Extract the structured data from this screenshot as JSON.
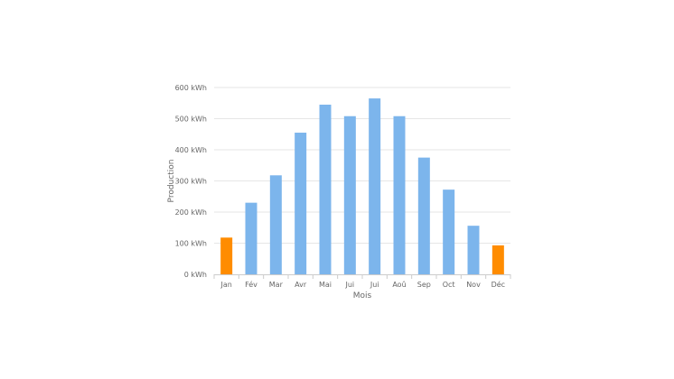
{
  "chart_data": {
    "type": "bar",
    "categories": [
      "Jan",
      "Fév",
      "Mar",
      "Avr",
      "Mai",
      "Jui",
      "Jui",
      "Aoû",
      "Sep",
      "Oct",
      "Nov",
      "Déc"
    ],
    "values": [
      118,
      230,
      318,
      455,
      545,
      508,
      565,
      508,
      375,
      272,
      156,
      93
    ],
    "xlabel": "Mois",
    "ylabel": "Production",
    "yticks": [
      "0 kWh",
      "100 kWh",
      "200 kWh",
      "300 kWh",
      "400 kWh",
      "500 kWh",
      "600 kWh"
    ],
    "ylim": [
      0,
      600
    ],
    "grid": true,
    "legend": "none",
    "highlight_categories": [
      0,
      11
    ],
    "colors": {
      "bar": "#7cb5ec",
      "highlight": "#ff8c00",
      "grid": "#e6e6e6",
      "axis": "#cccccc",
      "text": "#666666"
    }
  }
}
